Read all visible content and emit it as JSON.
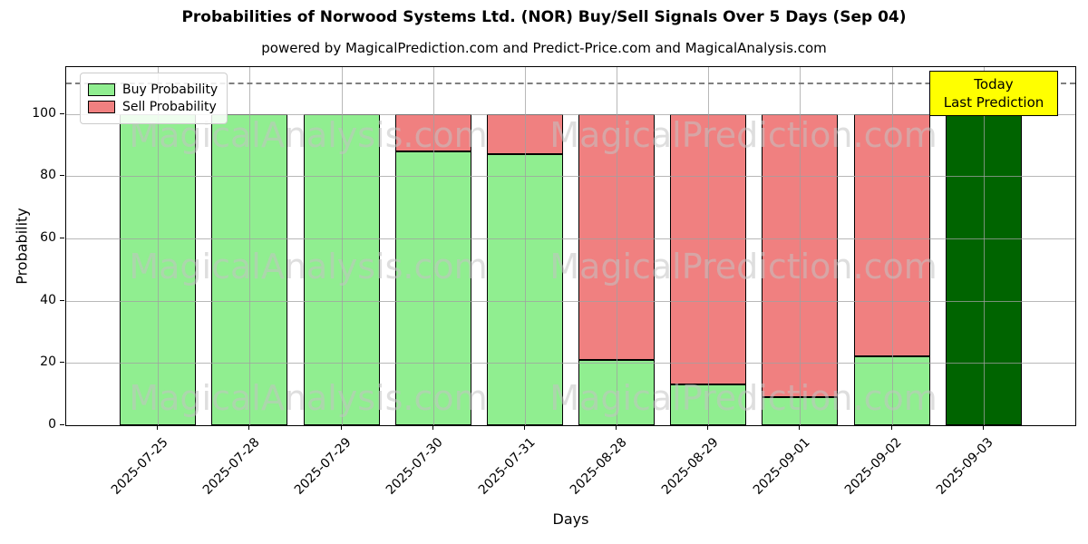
{
  "title": "Probabilities of Norwood Systems Ltd. (NOR) Buy/Sell Signals Over 5 Days (Sep 04)",
  "subtitle": "powered by MagicalPrediction.com and Predict-Price.com and MagicalAnalysis.com",
  "annotation": {
    "line1": "Today",
    "line2": "Last Prediction",
    "bg_color": "#ffff00"
  },
  "watermarks": {
    "left_text": "MagicalAnalysis.com",
    "right_text": "MagicalPrediction.com"
  },
  "legend": {
    "items": [
      {
        "label": "Buy Probability",
        "color": "#90ee90"
      },
      {
        "label": "Sell Probability",
        "color": "#f08080"
      }
    ]
  },
  "colors": {
    "buy": "#90ee90",
    "sell": "#f08080",
    "today_bar": "#006400",
    "grid": "#a0a0a0",
    "dashed_line": "#7f7f7f",
    "annotation_bg": "#ffff00"
  },
  "chart_data": {
    "type": "bar",
    "stacked": true,
    "title": "Probabilities of Norwood Systems Ltd. (NOR) Buy/Sell Signals Over 5 Days (Sep 04)",
    "xlabel": "Days",
    "ylabel": "Probability",
    "categories": [
      "2025-07-25",
      "2025-07-28",
      "2025-07-29",
      "2025-07-30",
      "2025-07-31",
      "2025-08-28",
      "2025-08-29",
      "2025-09-01",
      "2025-09-02",
      "2025-09-03"
    ],
    "series": [
      {
        "name": "Buy Probability",
        "color": "#90ee90",
        "values": [
          100,
          100,
          100,
          88,
          87,
          21,
          13,
          9,
          22,
          100
        ]
      },
      {
        "name": "Sell Probability",
        "color": "#f08080",
        "values": [
          0,
          0,
          0,
          12,
          13,
          79,
          87,
          91,
          78,
          0
        ]
      }
    ],
    "today_bar": {
      "index": 9,
      "color": "#006400",
      "label": "Today Last Prediction"
    },
    "yticks": [
      0,
      20,
      40,
      60,
      80,
      100
    ],
    "ylim": [
      0,
      115
    ],
    "dashed_line_y": 110,
    "grid": true,
    "legend_position": "upper left"
  }
}
